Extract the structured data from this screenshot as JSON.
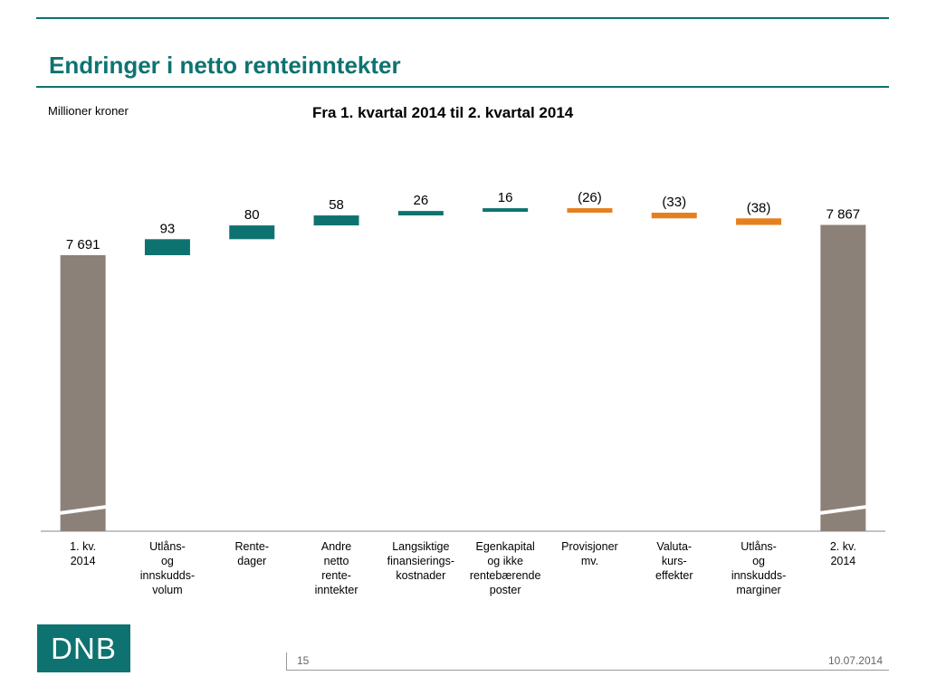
{
  "slide": {
    "title": "Endringer i netto renteinntekter",
    "unit_label": "Millioner kroner",
    "page_number": "15",
    "date": "10.07.2014",
    "logo_text": "DNB"
  },
  "colors": {
    "accent": "#0e7370",
    "total": "#8b8178",
    "increase": "#0e7370",
    "decrease": "#e5801e",
    "axis": "#888888"
  },
  "chart_data": {
    "type": "bar",
    "subtype": "waterfall",
    "title": "Fra 1. kvartal 2014 til 2. kvartal 2014",
    "ylabel": "Millioner kroner",
    "axis_break": true,
    "categories": [
      [
        "1. kv.",
        "2014"
      ],
      [
        "Utlåns-",
        "og",
        "innskudds-",
        "volum"
      ],
      [
        "Rente-",
        "dager"
      ],
      [
        "Andre",
        "netto",
        "rente-",
        "inntekter"
      ],
      [
        "Langsiktige",
        "finansierings-",
        "kostnader"
      ],
      [
        "Egenkapital",
        "og ikke",
        "rentebærende",
        "poster"
      ],
      [
        "Provisjoner",
        "mv."
      ],
      [
        "Valuta-",
        "kurs-",
        "effekter"
      ],
      [
        "Utlåns-",
        "og",
        "innskudds-",
        "marginer"
      ],
      [
        "2. kv.",
        "2014"
      ]
    ],
    "items": [
      {
        "kind": "total",
        "value": 7691,
        "label": "7 691"
      },
      {
        "kind": "increase",
        "value": 93,
        "label": "93"
      },
      {
        "kind": "increase",
        "value": 80,
        "label": "80"
      },
      {
        "kind": "increase",
        "value": 58,
        "label": "58"
      },
      {
        "kind": "increase",
        "value": 26,
        "label": "26"
      },
      {
        "kind": "increase",
        "value": 16,
        "label": "16"
      },
      {
        "kind": "decrease",
        "value": -26,
        "label": "(26)"
      },
      {
        "kind": "decrease",
        "value": -33,
        "label": "(33)"
      },
      {
        "kind": "decrease",
        "value": -38,
        "label": "(38)"
      },
      {
        "kind": "total",
        "value": 7867,
        "label": "7 867"
      }
    ]
  }
}
